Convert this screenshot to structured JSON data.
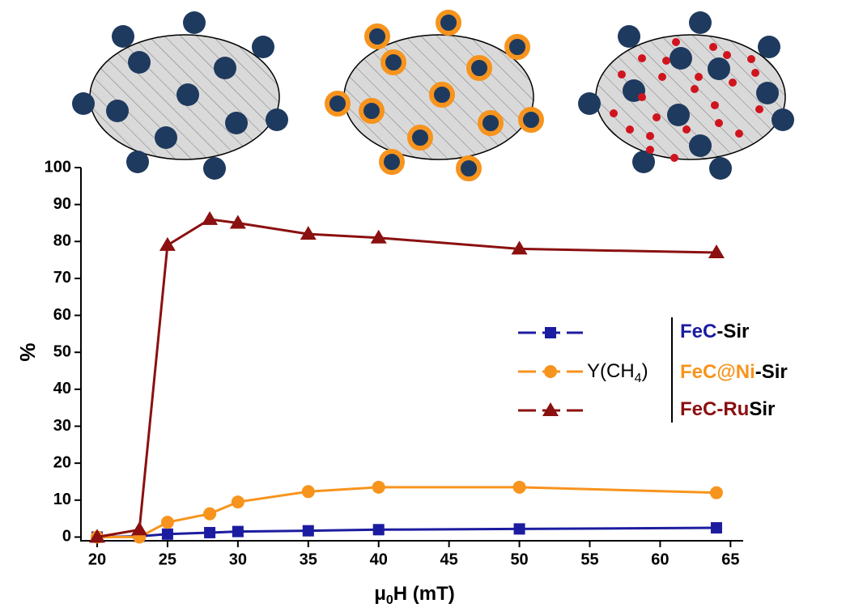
{
  "chart_data": {
    "type": "line",
    "x_label_parts": [
      "μ",
      "0",
      "H (mT)"
    ],
    "y_label": "%",
    "x": [
      20,
      23,
      25,
      28,
      30,
      35,
      40,
      50,
      64
    ],
    "series": [
      {
        "name_parts": [
          {
            "text": "FeC",
            "color": "#1c1ca0"
          },
          {
            "text": "-Sir",
            "color": "#000000"
          }
        ],
        "color": "#1c1ca0",
        "marker": "square",
        "values": [
          0,
          0.2,
          0.8,
          1.2,
          1.5,
          1.7,
          2,
          2.2,
          2.5
        ]
      },
      {
        "name_parts": [
          {
            "text": "FeC@Ni",
            "color": "#f7941d"
          },
          {
            "text": "-Sir",
            "color": "#000000"
          }
        ],
        "color": "#f7941d",
        "marker": "circle",
        "values": [
          0,
          0,
          4,
          6.3,
          9.5,
          12.3,
          13.5,
          13.5,
          12
        ]
      },
      {
        "name_parts": [
          {
            "text": "FeC-Ru",
            "color": "#8b1010"
          },
          {
            "text": "Sir",
            "color": "#000000"
          }
        ],
        "color": "#8b1010",
        "marker": "triangle",
        "values": [
          0,
          2,
          79,
          86,
          85,
          82,
          81,
          78,
          77
        ]
      }
    ],
    "legend_label_parts": [
      "Y(CH",
      "4",
      ")"
    ],
    "xlim": [
      18.85,
      65.9
    ],
    "ylim": [
      -1,
      100
    ],
    "xticks": [
      20,
      25,
      30,
      35,
      40,
      45,
      50,
      55,
      60,
      65
    ],
    "yticks": [
      0,
      10,
      20,
      30,
      40,
      50,
      60,
      70,
      80,
      90,
      100
    ]
  }
}
